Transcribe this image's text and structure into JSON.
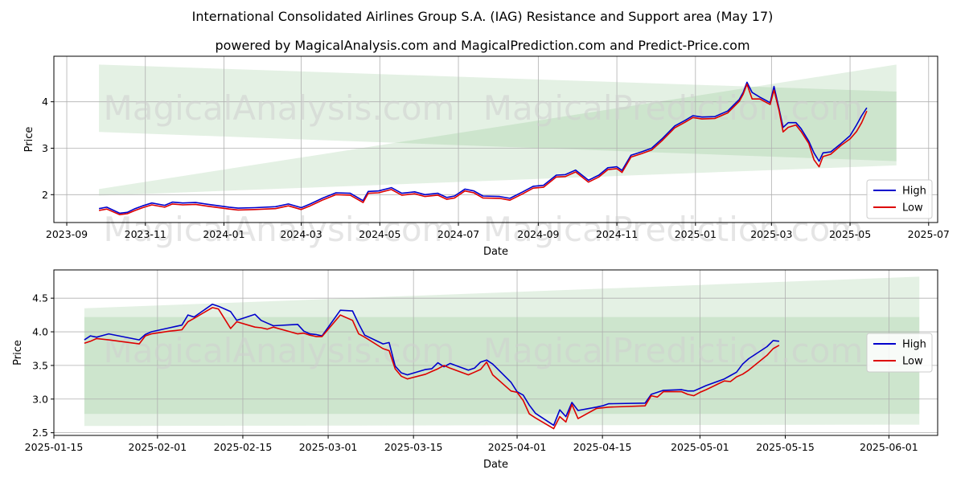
{
  "figure": {
    "title": "International Consolidated Airlines Group S.A. (IAG) Resistance and Support area (May 17)",
    "subtitle": "powered by MagicalAnalysis.com and MagicalPrediction.com and Predict-Price.com",
    "watermarks": [
      "MagicalAnalysis.com",
      "MagicalPrediction.com"
    ]
  },
  "colors": {
    "high": "#0000cc",
    "low": "#dd0000",
    "band": "#5aa85a"
  },
  "chart_data": [
    {
      "type": "line",
      "xlabel": "Date",
      "ylabel": "Price",
      "xticks": [
        "2023-09",
        "2023-11",
        "2024-01",
        "2024-03",
        "2024-05",
        "2024-07",
        "2024-09",
        "2024-11",
        "2025-01",
        "2025-03",
        "2025-05",
        "2025-07"
      ],
      "yticks": [
        2,
        3,
        4
      ],
      "xlim": [
        "2023-08-22",
        "2025-07-08"
      ],
      "ylim": [
        1.4,
        4.98
      ],
      "grid": true,
      "legend": "bottom-right",
      "series": [
        {
          "name": "High",
          "x": [
            "2023-09-26",
            "2023-10-02",
            "2023-10-12",
            "2023-10-18",
            "2023-10-24",
            "2023-10-30",
            "2023-11-06",
            "2023-11-16",
            "2023-11-22",
            "2023-11-30",
            "2023-12-10",
            "2023-12-20",
            "2024-01-05",
            "2024-01-12",
            "2024-01-25",
            "2024-02-10",
            "2024-02-20",
            "2024-03-01",
            "2024-03-08",
            "2024-03-18",
            "2024-03-28",
            "2024-04-08",
            "2024-04-18",
            "2024-04-22",
            "2024-04-30",
            "2024-05-10",
            "2024-05-18",
            "2024-05-28",
            "2024-06-05",
            "2024-06-15",
            "2024-06-22",
            "2024-06-28",
            "2024-07-06",
            "2024-07-13",
            "2024-07-20",
            "2024-08-02",
            "2024-08-10",
            "2024-08-20",
            "2024-08-28",
            "2024-09-05",
            "2024-09-15",
            "2024-09-22",
            "2024-09-30",
            "2024-10-10",
            "2024-10-18",
            "2024-10-25",
            "2024-11-01",
            "2024-11-05",
            "2024-11-12",
            "2024-11-20",
            "2024-11-28",
            "2024-12-06",
            "2024-12-16",
            "2024-12-24",
            "2024-12-30",
            "2025-01-06",
            "2025-01-16",
            "2025-01-26",
            "2025-02-04",
            "2025-02-07",
            "2025-02-10",
            "2025-02-14",
            "2025-02-20",
            "2025-02-28",
            "2025-03-03",
            "2025-03-07",
            "2025-03-10",
            "2025-03-14",
            "2025-03-20",
            "2025-03-24",
            "2025-03-30",
            "2025-04-03",
            "2025-04-07",
            "2025-04-10",
            "2025-04-16",
            "2025-04-24",
            "2025-05-01",
            "2025-05-06",
            "2025-05-10",
            "2025-05-14"
          ],
          "values": [
            1.7,
            1.73,
            1.6,
            1.62,
            1.7,
            1.76,
            1.82,
            1.77,
            1.84,
            1.82,
            1.83,
            1.79,
            1.73,
            1.71,
            1.72,
            1.74,
            1.8,
            1.72,
            1.8,
            1.93,
            2.04,
            2.03,
            1.87,
            2.07,
            2.08,
            2.15,
            2.03,
            2.06,
            2.0,
            2.03,
            1.94,
            1.97,
            2.12,
            2.08,
            1.97,
            1.96,
            1.92,
            2.06,
            2.18,
            2.2,
            2.42,
            2.43,
            2.53,
            2.31,
            2.42,
            2.58,
            2.6,
            2.52,
            2.85,
            2.92,
            3.0,
            3.2,
            3.48,
            3.6,
            3.7,
            3.67,
            3.68,
            3.8,
            4.05,
            4.2,
            4.42,
            4.2,
            4.1,
            3.98,
            4.33,
            3.84,
            3.45,
            3.55,
            3.55,
            3.42,
            3.15,
            2.9,
            2.72,
            2.9,
            2.92,
            3.1,
            3.27,
            3.5,
            3.7,
            3.87
          ]
        },
        {
          "name": "Low",
          "x": [
            "2023-09-26",
            "2023-10-02",
            "2023-10-12",
            "2023-10-18",
            "2023-10-24",
            "2023-10-30",
            "2023-11-06",
            "2023-11-16",
            "2023-11-22",
            "2023-11-30",
            "2023-12-10",
            "2023-12-20",
            "2024-01-05",
            "2024-01-12",
            "2024-01-25",
            "2024-02-10",
            "2024-02-20",
            "2024-03-01",
            "2024-03-08",
            "2024-03-18",
            "2024-03-28",
            "2024-04-08",
            "2024-04-18",
            "2024-04-22",
            "2024-04-30",
            "2024-05-10",
            "2024-05-18",
            "2024-05-28",
            "2024-06-05",
            "2024-06-15",
            "2024-06-22",
            "2024-06-28",
            "2024-07-06",
            "2024-07-13",
            "2024-07-20",
            "2024-08-02",
            "2024-08-10",
            "2024-08-20",
            "2024-08-28",
            "2024-09-05",
            "2024-09-15",
            "2024-09-22",
            "2024-09-30",
            "2024-10-10",
            "2024-10-18",
            "2024-10-25",
            "2024-11-01",
            "2024-11-05",
            "2024-11-12",
            "2024-11-20",
            "2024-11-28",
            "2024-12-06",
            "2024-12-16",
            "2024-12-24",
            "2024-12-30",
            "2025-01-06",
            "2025-01-16",
            "2025-01-26",
            "2025-02-04",
            "2025-02-07",
            "2025-02-10",
            "2025-02-14",
            "2025-02-20",
            "2025-02-28",
            "2025-03-03",
            "2025-03-07",
            "2025-03-10",
            "2025-03-14",
            "2025-03-20",
            "2025-03-24",
            "2025-03-30",
            "2025-04-03",
            "2025-04-07",
            "2025-04-10",
            "2025-04-16",
            "2025-04-24",
            "2025-05-01",
            "2025-05-06",
            "2025-05-10",
            "2025-05-14"
          ],
          "values": [
            1.66,
            1.69,
            1.57,
            1.59,
            1.66,
            1.72,
            1.78,
            1.73,
            1.8,
            1.78,
            1.79,
            1.75,
            1.69,
            1.67,
            1.68,
            1.7,
            1.76,
            1.68,
            1.76,
            1.89,
            2.0,
            1.99,
            1.83,
            2.03,
            2.04,
            2.11,
            1.99,
            2.02,
            1.96,
            1.99,
            1.9,
            1.93,
            2.08,
            2.04,
            1.93,
            1.92,
            1.88,
            2.02,
            2.14,
            2.16,
            2.38,
            2.39,
            2.49,
            2.27,
            2.38,
            2.54,
            2.56,
            2.48,
            2.81,
            2.88,
            2.96,
            3.16,
            3.44,
            3.56,
            3.66,
            3.63,
            3.64,
            3.76,
            4.01,
            4.16,
            4.38,
            4.06,
            4.06,
            3.94,
            4.25,
            3.8,
            3.35,
            3.45,
            3.5,
            3.36,
            3.1,
            2.75,
            2.6,
            2.82,
            2.87,
            3.06,
            3.2,
            3.36,
            3.55,
            3.8
          ]
        }
      ],
      "bands": [
        {
          "x": [
            "2023-09-26",
            "2025-06-06"
          ],
          "upper": [
            4.8,
            4.22
          ],
          "lower": [
            3.35,
            2.72
          ]
        },
        {
          "x": [
            "2023-09-26",
            "2025-06-06"
          ],
          "upper": [
            2.12,
            4.8
          ],
          "lower": [
            1.98,
            2.63
          ]
        }
      ]
    },
    {
      "type": "line",
      "xlabel": "Date",
      "ylabel": "Price",
      "xticks": [
        "2025-01-15",
        "2025-02-01",
        "2025-02-15",
        "2025-03-01",
        "2025-03-15",
        "2025-04-01",
        "2025-04-15",
        "2025-05-01",
        "2025-05-15",
        "2025-06-01"
      ],
      "yticks": [
        2.5,
        3.0,
        3.5,
        4.0,
        4.5
      ],
      "xlim": [
        "2025-01-15",
        "2025-06-09"
      ],
      "ylim": [
        2.46,
        4.92
      ],
      "grid": true,
      "legend": "right",
      "series": [
        {
          "name": "High",
          "x": [
            "2025-01-20",
            "2025-01-21",
            "2025-01-22",
            "2025-01-24",
            "2025-01-29",
            "2025-01-30",
            "2025-01-31",
            "2025-02-03",
            "2025-02-04",
            "2025-02-05",
            "2025-02-06",
            "2025-02-07",
            "2025-02-10",
            "2025-02-11",
            "2025-02-13",
            "2025-02-14",
            "2025-02-17",
            "2025-02-18",
            "2025-02-19",
            "2025-02-20",
            "2025-02-24",
            "2025-02-25",
            "2025-02-26",
            "2025-02-27",
            "2025-02-28",
            "2025-03-03",
            "2025-03-05",
            "2025-03-06",
            "2025-03-07",
            "2025-03-10",
            "2025-03-11",
            "2025-03-12",
            "2025-03-13",
            "2025-03-14",
            "2025-03-17",
            "2025-03-18",
            "2025-03-19",
            "2025-03-20",
            "2025-03-21",
            "2025-03-24",
            "2025-03-25",
            "2025-03-26",
            "2025-03-27",
            "2025-03-28",
            "2025-03-31",
            "2025-04-01",
            "2025-04-02",
            "2025-04-03",
            "2025-04-04",
            "2025-04-07",
            "2025-04-08",
            "2025-04-09",
            "2025-04-10",
            "2025-04-11",
            "2025-04-14",
            "2025-04-15",
            "2025-04-16",
            "2025-04-22",
            "2025-04-23",
            "2025-04-24",
            "2025-04-25",
            "2025-04-28",
            "2025-04-29",
            "2025-04-30",
            "2025-05-01",
            "2025-05-02",
            "2025-05-05",
            "2025-05-06",
            "2025-05-07",
            "2025-05-08",
            "2025-05-09",
            "2025-05-12",
            "2025-05-13",
            "2025-05-14"
          ],
          "values": [
            3.88,
            3.94,
            3.92,
            3.97,
            3.88,
            3.96,
            4.0,
            4.06,
            4.08,
            4.1,
            4.25,
            4.22,
            4.41,
            4.38,
            4.3,
            4.17,
            4.26,
            4.17,
            4.13,
            4.09,
            4.11,
            4.01,
            3.97,
            3.96,
            3.94,
            4.32,
            4.31,
            4.12,
            3.95,
            3.82,
            3.84,
            3.49,
            3.39,
            3.36,
            3.44,
            3.45,
            3.54,
            3.48,
            3.53,
            3.43,
            3.46,
            3.55,
            3.58,
            3.52,
            3.25,
            3.11,
            3.06,
            2.91,
            2.79,
            2.61,
            2.84,
            2.74,
            2.95,
            2.83,
            2.88,
            2.9,
            2.93,
            2.94,
            3.07,
            3.1,
            3.13,
            3.14,
            3.12,
            3.12,
            3.16,
            3.2,
            3.3,
            3.35,
            3.4,
            3.52,
            3.6,
            3.78,
            3.87,
            3.86
          ]
        },
        {
          "name": "Low",
          "x": [
            "2025-01-20",
            "2025-01-21",
            "2025-01-22",
            "2025-01-24",
            "2025-01-29",
            "2025-01-30",
            "2025-01-31",
            "2025-02-03",
            "2025-02-04",
            "2025-02-05",
            "2025-02-06",
            "2025-02-07",
            "2025-02-10",
            "2025-02-11",
            "2025-02-13",
            "2025-02-14",
            "2025-02-17",
            "2025-02-18",
            "2025-02-19",
            "2025-02-20",
            "2025-02-24",
            "2025-02-25",
            "2025-02-26",
            "2025-02-27",
            "2025-02-28",
            "2025-03-03",
            "2025-03-05",
            "2025-03-06",
            "2025-03-07",
            "2025-03-10",
            "2025-03-11",
            "2025-03-12",
            "2025-03-13",
            "2025-03-14",
            "2025-03-17",
            "2025-03-18",
            "2025-03-19",
            "2025-03-20",
            "2025-03-21",
            "2025-03-24",
            "2025-03-25",
            "2025-03-26",
            "2025-03-27",
            "2025-03-28",
            "2025-03-31",
            "2025-04-01",
            "2025-04-02",
            "2025-04-03",
            "2025-04-04",
            "2025-04-07",
            "2025-04-08",
            "2025-04-09",
            "2025-04-10",
            "2025-04-11",
            "2025-04-14",
            "2025-04-15",
            "2025-04-16",
            "2025-04-22",
            "2025-04-23",
            "2025-04-24",
            "2025-04-25",
            "2025-04-28",
            "2025-04-29",
            "2025-04-30",
            "2025-05-01",
            "2025-05-02",
            "2025-05-05",
            "2025-05-06",
            "2025-05-07",
            "2025-05-08",
            "2025-05-09",
            "2025-05-12",
            "2025-05-13",
            "2025-05-14"
          ],
          "values": [
            3.83,
            3.86,
            3.9,
            3.88,
            3.82,
            3.94,
            3.97,
            4.01,
            4.02,
            4.03,
            4.15,
            4.2,
            4.36,
            4.34,
            4.05,
            4.15,
            4.07,
            4.06,
            4.04,
            4.07,
            3.97,
            3.98,
            3.95,
            3.93,
            3.93,
            4.25,
            4.17,
            3.97,
            3.92,
            3.75,
            3.72,
            3.45,
            3.34,
            3.3,
            3.37,
            3.41,
            3.45,
            3.5,
            3.46,
            3.36,
            3.4,
            3.44,
            3.55,
            3.36,
            3.12,
            3.1,
            2.98,
            2.78,
            2.72,
            2.56,
            2.74,
            2.66,
            2.92,
            2.71,
            2.86,
            2.87,
            2.88,
            2.9,
            3.05,
            3.03,
            3.11,
            3.11,
            3.07,
            3.05,
            3.1,
            3.14,
            3.27,
            3.26,
            3.33,
            3.37,
            3.43,
            3.65,
            3.75,
            3.8
          ]
        }
      ],
      "bands": [
        {
          "x": [
            "2025-01-20",
            "2025-06-06"
          ],
          "upper": [
            4.22,
            4.22
          ],
          "lower": [
            2.78,
            2.78
          ]
        },
        {
          "x": [
            "2025-01-20",
            "2025-06-06"
          ],
          "upper": [
            4.35,
            4.82
          ],
          "lower": [
            2.6,
            2.62
          ]
        }
      ]
    }
  ]
}
